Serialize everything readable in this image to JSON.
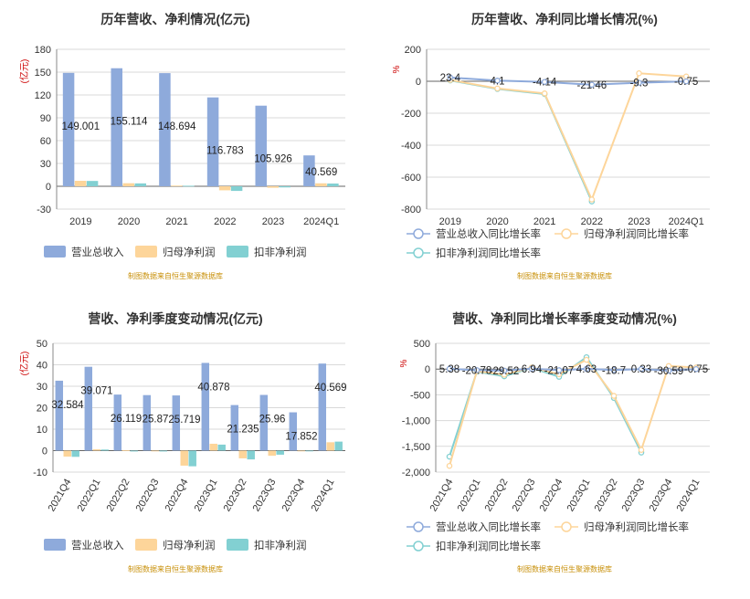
{
  "source_note": "制图数据来自恒生聚源数据库",
  "legend_bar": [
    "营业总收入",
    "归母净利润",
    "扣非净利润"
  ],
  "legend_line": [
    "营业总收入同比增长率",
    "归母净利润同比增长率",
    "扣非净利润同比增长率"
  ],
  "colors": {
    "s1": "#8eaadb",
    "s2": "#fdd59a",
    "s3": "#82d0d2"
  },
  "chart_data": [
    {
      "id": "annual-bar",
      "type": "bar",
      "title": "历年营收、净利情况(亿元)",
      "ylabel": "(亿元)",
      "categories": [
        "2019",
        "2020",
        "2021",
        "2022",
        "2023",
        "2024Q1"
      ],
      "yticks": [
        "-30",
        "0",
        "30",
        "60",
        "90",
        "120",
        "150",
        "180"
      ],
      "ylim": [
        -30,
        180
      ],
      "series": [
        {
          "name": "营业总收入",
          "values": [
            149.001,
            155.114,
            148.694,
            116.783,
            105.926,
            40.569
          ],
          "labels": [
            "149.001",
            "155.114",
            "148.694",
            "116.783",
            "105.926",
            "40.569"
          ]
        },
        {
          "name": "归母净利润",
          "values": [
            7.2,
            4.0,
            0.9,
            -5.3,
            -2.0,
            3.9
          ]
        },
        {
          "name": "扣非净利润",
          "values": [
            7.0,
            3.8,
            0.7,
            -6.1,
            -1.5,
            3.6
          ]
        }
      ]
    },
    {
      "id": "annual-line",
      "type": "line",
      "title": "历年营收、净利同比增长情况(%)",
      "ylabel": "%",
      "categories": [
        "2019",
        "2020",
        "2021",
        "2022",
        "2023",
        "2024Q1"
      ],
      "yticks": [
        "-800",
        "-600",
        "-400",
        "-200",
        "0",
        "200"
      ],
      "ylim": [
        -800,
        200
      ],
      "series": [
        {
          "name": "营业总收入同比增长率",
          "values": [
            23.4,
            4.1,
            -4.14,
            -21.46,
            -9.3,
            -0.75
          ],
          "labels": [
            "23.4",
            "4.1",
            "-4.14",
            "-21.46",
            "-9.3",
            "-0.75"
          ]
        },
        {
          "name": "归母净利润同比增长率",
          "values": [
            8,
            -45,
            -76,
            -740,
            50,
            30
          ]
        },
        {
          "name": "扣非净利润同比增长率",
          "values": [
            5,
            -48,
            -80,
            -752,
            null,
            null
          ]
        }
      ]
    },
    {
      "id": "quarter-bar",
      "type": "bar",
      "title": "营收、净利季度变动情况(亿元)",
      "ylabel": "(亿元)",
      "categories": [
        "2021Q4",
        "2022Q1",
        "2022Q2",
        "2022Q3",
        "2022Q4",
        "2023Q1",
        "2023Q2",
        "2023Q3",
        "2023Q4",
        "2024Q1"
      ],
      "yticks": [
        "-10",
        "0",
        "10",
        "20",
        "30",
        "40",
        "50"
      ],
      "ylim": [
        -10,
        50
      ],
      "series": [
        {
          "name": "营业总收入",
          "values": [
            32.584,
            39.071,
            26.119,
            25.87,
            25.719,
            40.878,
            21.235,
            25.96,
            17.852,
            40.569
          ],
          "labels": [
            "32.584",
            "39.071",
            "26.119",
            "25.87",
            "25.719",
            "40.878",
            "21.235",
            "25.96",
            "17.852",
            "40.569"
          ]
        },
        {
          "name": "归母净利润",
          "values": [
            -2.8,
            0.6,
            0.2,
            0.0,
            -7.0,
            3.2,
            -3.6,
            -2.4,
            0.0,
            3.9
          ]
        },
        {
          "name": "扣非净利润",
          "values": [
            -2.9,
            0.5,
            -0.4,
            -0.4,
            -7.3,
            2.8,
            -4.1,
            -1.9,
            0.0,
            4.2
          ]
        }
      ]
    },
    {
      "id": "quarter-line",
      "type": "line",
      "title": "营收、净利同比增长率季度变动情况(%)",
      "ylabel": "%",
      "categories": [
        "2021Q4",
        "2022Q1",
        "2022Q2",
        "2022Q3",
        "2022Q4",
        "2023Q1",
        "2023Q2",
        "2023Q3",
        "2023Q4",
        "2024Q1"
      ],
      "yticks": [
        "-2,000",
        "-1,500",
        "-1,000",
        "-500",
        "0",
        "500"
      ],
      "ylim": [
        -2000,
        500
      ],
      "series": [
        {
          "name": "营业总收入同比增长率",
          "values": [
            5.38,
            -20.78,
            -29.52,
            6.94,
            -21.07,
            4.63,
            -18.7,
            0.33,
            -30.59,
            -0.75
          ],
          "labels": [
            "5.38",
            "-20.78",
            "-29.52",
            "6.94",
            "-21.07",
            "4.63",
            "-18.7",
            "0.33",
            "-30.59",
            "-0.75"
          ]
        },
        {
          "name": "归母净利润同比增长率",
          "values": [
            -1880,
            -40,
            -110,
            30,
            -100,
            180,
            -520,
            -1570,
            60,
            30
          ]
        },
        {
          "name": "扣非净利润同比增长率",
          "values": [
            -1700,
            -50,
            -140,
            25,
            -150,
            230,
            -560,
            -1620,
            null,
            null
          ]
        }
      ]
    }
  ]
}
